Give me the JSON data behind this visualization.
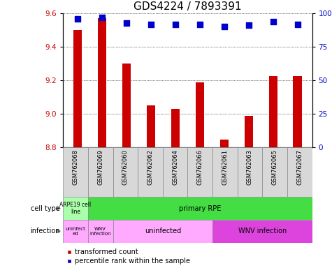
{
  "title": "GDS4224 / 7893391",
  "samples": [
    "GSM762068",
    "GSM762069",
    "GSM762060",
    "GSM762062",
    "GSM762064",
    "GSM762066",
    "GSM762061",
    "GSM762063",
    "GSM762065",
    "GSM762067"
  ],
  "transformed_count": [
    9.5,
    9.57,
    9.3,
    9.05,
    9.03,
    9.19,
    8.845,
    8.99,
    9.225,
    9.225
  ],
  "percentile_rank": [
    96,
    97,
    93,
    92,
    92,
    92,
    90,
    91,
    94,
    92
  ],
  "ylim": [
    8.8,
    9.6
  ],
  "yticks": [
    8.8,
    9.0,
    9.2,
    9.4,
    9.6
  ],
  "y2lim": [
    0,
    100
  ],
  "y2ticks": [
    0,
    25,
    50,
    75,
    100
  ],
  "y2labels": [
    "0",
    "25",
    "50",
    "75",
    "100%"
  ],
  "bar_color": "#cc0000",
  "dot_color": "#0000cc",
  "cell_type_arpe_color": "#aaffaa",
  "cell_type_primary_color": "#44dd44",
  "infection_light_color": "#ffaaff",
  "infection_dark_color": "#dd44dd",
  "sample_bg_color": "#d8d8d8",
  "bar_width": 0.35,
  "dot_size": 30,
  "title_fontsize": 11,
  "tick_fontsize": 7.5,
  "sample_fontsize": 6,
  "label_fontsize": 7,
  "annotation_fontsize": 7
}
